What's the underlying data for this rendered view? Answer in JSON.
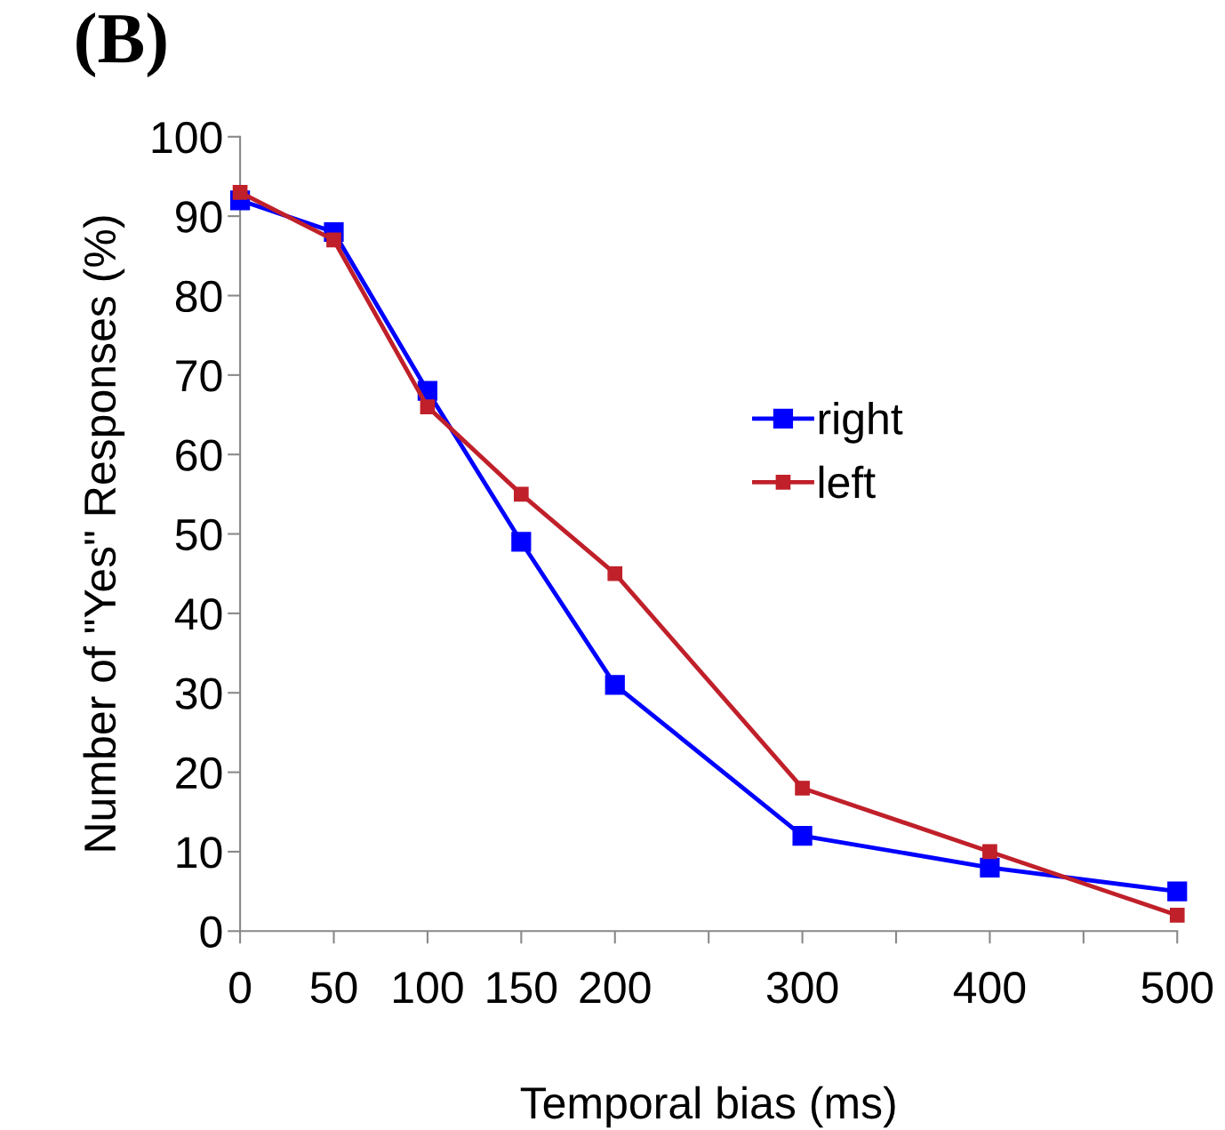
{
  "chart_data": {
    "type": "line",
    "title": "(B)",
    "xlabel": "Temporal bias (ms)",
    "ylabel": "Number of \"Yes\" Responses (%)",
    "x": [
      0,
      50,
      100,
      150,
      200,
      300,
      400,
      500
    ],
    "series": [
      {
        "name": "right",
        "color": "#0000ff",
        "values": [
          92,
          88,
          68,
          49,
          31,
          12,
          8,
          5
        ]
      },
      {
        "name": "left",
        "color": "#c0202a",
        "values": [
          93,
          87,
          66,
          55,
          45,
          18,
          10,
          2
        ]
      }
    ],
    "xlim": [
      0,
      500
    ],
    "ylim": [
      0,
      100
    ],
    "xticks": [
      0,
      50,
      100,
      150,
      200,
      {
        "value": 250,
        "label": null
      },
      300,
      {
        "value": 350,
        "label": null
      },
      400,
      {
        "value": 450,
        "label": null
      },
      500
    ],
    "yticks": [
      0,
      10,
      20,
      30,
      40,
      50,
      60,
      70,
      80,
      90,
      100
    ],
    "marker": "square",
    "line_style": "solid",
    "legend": "right",
    "grid": false
  }
}
